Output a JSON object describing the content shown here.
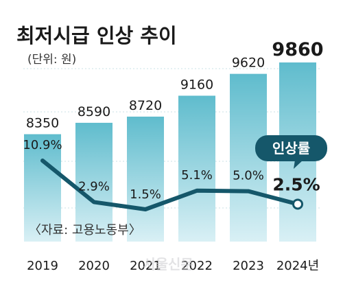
{
  "title": "최저시급 인상 추이",
  "unit": "(단위: 원)",
  "source": "〈자료: 고용노동부〉",
  "watermark": "서울신문",
  "chart_data": {
    "type": "bar",
    "categories": [
      "2019",
      "2020",
      "2021",
      "2022",
      "2023",
      "2024년"
    ],
    "values": [
      8350,
      8590,
      8720,
      9160,
      9620,
      9860
    ],
    "value_labels": [
      "8350",
      "8590",
      "8720",
      "9160",
      "9620",
      "9860"
    ],
    "line_series": {
      "name": "인상률",
      "values": [
        10.9,
        2.9,
        1.5,
        5.1,
        5.0,
        2.5
      ],
      "labels": [
        "10.9%",
        "2.9%",
        "1.5%",
        "5.1%",
        "5.0%",
        "2.5%"
      ]
    },
    "colors": {
      "bar_top": "#5fbccd",
      "bar_bottom": "#d9f0f5",
      "line": "#15576a",
      "callout": "#15576a",
      "text": "#1a1a1a",
      "grid": "#b9d6de"
    }
  }
}
